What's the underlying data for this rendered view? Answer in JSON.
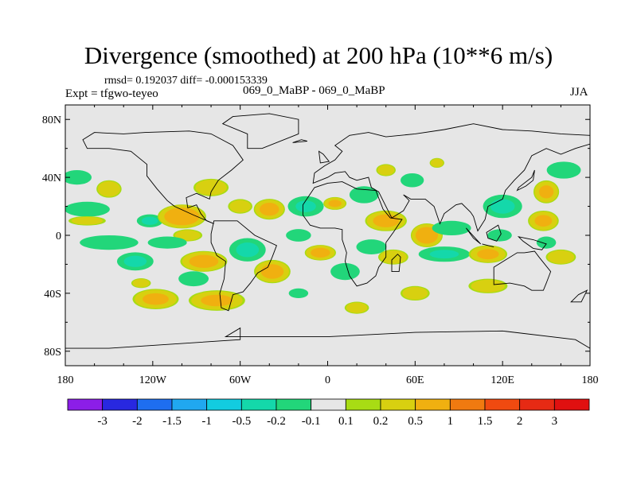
{
  "chart_data": {
    "type": "heatmap",
    "title": "Divergence (smoothed) at 200 hPa (10**6 m/s)",
    "stats_line": "rmsd= 0.192037 diff= -0.000153339",
    "experiment_line": "Expt = tfgwo-teyeo",
    "case_line": "069_0_MaBP - 069_0_MaBP",
    "season": "JJA",
    "x_axis": {
      "range": [
        -180,
        180
      ],
      "ticks": [
        -180,
        -120,
        -60,
        0,
        60,
        120,
        180
      ],
      "tick_labels": [
        "180",
        "120W",
        "60W",
        "0",
        "60E",
        "120E",
        "180"
      ]
    },
    "y_axis": {
      "range": [
        -90,
        90
      ],
      "ticks": [
        80,
        40,
        0,
        -40,
        -80
      ],
      "tick_labels": [
        "80N",
        "40N",
        "0",
        "40S",
        "80S"
      ]
    },
    "colorbar": {
      "labels": [
        "-3",
        "-2",
        "-1.5",
        "-1",
        "-0.5",
        "-0.2",
        "-0.1",
        "0.1",
        "0.2",
        "0.5",
        "1",
        "1.5",
        "2",
        "3"
      ],
      "colors": [
        "#8c1ee8",
        "#2828e0",
        "#1e6ef0",
        "#20a8f0",
        "#12cce0",
        "#14d8aa",
        "#22d67a",
        "#e6e6e6",
        "#a8dc14",
        "#d8d010",
        "#f0b010",
        "#f07a10",
        "#f04a10",
        "#e62a14",
        "#e01010"
      ]
    },
    "features": [
      {
        "lon": -172,
        "lat": 40,
        "rx": 12,
        "ry": 6,
        "v": -0.3
      },
      {
        "lon": -150,
        "lat": 32,
        "rx": 10,
        "ry": 7,
        "v": 0.4
      },
      {
        "lon": -165,
        "lat": 18,
        "rx": 18,
        "ry": 6,
        "v": -0.4
      },
      {
        "lon": -165,
        "lat": 10,
        "rx": 16,
        "ry": 4,
        "v": 0.2
      },
      {
        "lon": -150,
        "lat": -5,
        "rx": 24,
        "ry": 6,
        "v": -0.3
      },
      {
        "lon": -132,
        "lat": -18,
        "rx": 14,
        "ry": 7,
        "v": -0.6
      },
      {
        "lon": -128,
        "lat": -33,
        "rx": 8,
        "ry": 4,
        "v": 0.3
      },
      {
        "lon": -118,
        "lat": -44,
        "rx": 18,
        "ry": 8,
        "v": 0.5
      },
      {
        "lon": -122,
        "lat": 10,
        "rx": 10,
        "ry": 5,
        "v": -0.6
      },
      {
        "lon": -100,
        "lat": 13,
        "rx": 18,
        "ry": 9,
        "v": 0.9
      },
      {
        "lon": -96,
        "lat": 0,
        "rx": 12,
        "ry": 5,
        "v": 0.3
      },
      {
        "lon": -110,
        "lat": -5,
        "rx": 16,
        "ry": 5,
        "v": -0.3
      },
      {
        "lon": -85,
        "lat": -18,
        "rx": 18,
        "ry": 8,
        "v": 0.6
      },
      {
        "lon": -92,
        "lat": -30,
        "rx": 12,
        "ry": 6,
        "v": -0.4
      },
      {
        "lon": -76,
        "lat": -45,
        "rx": 22,
        "ry": 8,
        "v": 0.5
      },
      {
        "lon": -80,
        "lat": 33,
        "rx": 14,
        "ry": 7,
        "v": 0.4
      },
      {
        "lon": -60,
        "lat": 20,
        "rx": 10,
        "ry": 6,
        "v": 0.3
      },
      {
        "lon": -55,
        "lat": -10,
        "rx": 14,
        "ry": 9,
        "v": -0.6
      },
      {
        "lon": -38,
        "lat": -25,
        "rx": 14,
        "ry": 9,
        "v": 0.6
      },
      {
        "lon": -40,
        "lat": 18,
        "rx": 12,
        "ry": 8,
        "v": 0.6
      },
      {
        "lon": -20,
        "lat": 0,
        "rx": 10,
        "ry": 5,
        "v": -0.4
      },
      {
        "lon": -5,
        "lat": -12,
        "rx": 12,
        "ry": 6,
        "v": 0.6
      },
      {
        "lon": -15,
        "lat": 20,
        "rx": 14,
        "ry": 8,
        "v": -0.5
      },
      {
        "lon": 5,
        "lat": 22,
        "rx": 9,
        "ry": 5,
        "v": 0.5
      },
      {
        "lon": 25,
        "lat": 28,
        "rx": 12,
        "ry": 7,
        "v": -0.3
      },
      {
        "lon": 40,
        "lat": 10,
        "rx": 16,
        "ry": 8,
        "v": 0.6
      },
      {
        "lon": 30,
        "lat": -8,
        "rx": 12,
        "ry": 6,
        "v": -0.4
      },
      {
        "lon": 12,
        "lat": -25,
        "rx": 12,
        "ry": 7,
        "v": -0.3
      },
      {
        "lon": 45,
        "lat": -15,
        "rx": 12,
        "ry": 6,
        "v": 0.4
      },
      {
        "lon": 68,
        "lat": 0,
        "rx": 12,
        "ry": 9,
        "v": 0.8
      },
      {
        "lon": 85,
        "lat": 5,
        "rx": 16,
        "ry": 6,
        "v": -0.3
      },
      {
        "lon": 80,
        "lat": -13,
        "rx": 20,
        "ry": 6,
        "v": -0.5
      },
      {
        "lon": 110,
        "lat": -13,
        "rx": 15,
        "ry": 7,
        "v": 0.5
      },
      {
        "lon": 118,
        "lat": 0,
        "rx": 10,
        "ry": 5,
        "v": -0.3
      },
      {
        "lon": 120,
        "lat": 20,
        "rx": 15,
        "ry": 9,
        "v": -0.6
      },
      {
        "lon": 148,
        "lat": 10,
        "rx": 12,
        "ry": 8,
        "v": 0.5
      },
      {
        "lon": 150,
        "lat": 30,
        "rx": 10,
        "ry": 9,
        "v": 0.5
      },
      {
        "lon": 162,
        "lat": 45,
        "rx": 14,
        "ry": 7,
        "v": -0.3
      },
      {
        "lon": 150,
        "lat": -5,
        "rx": 8,
        "ry": 5,
        "v": -0.3
      },
      {
        "lon": 160,
        "lat": -15,
        "rx": 12,
        "ry": 6,
        "v": 0.4
      },
      {
        "lon": 58,
        "lat": 38,
        "rx": 10,
        "ry": 6,
        "v": -0.2
      },
      {
        "lon": 40,
        "lat": 45,
        "rx": 8,
        "ry": 5,
        "v": 0.3
      },
      {
        "lon": 75,
        "lat": 50,
        "rx": 6,
        "ry": 4,
        "v": 0.3
      },
      {
        "lon": -20,
        "lat": -40,
        "rx": 8,
        "ry": 4,
        "v": -0.3
      },
      {
        "lon": 20,
        "lat": -50,
        "rx": 10,
        "ry": 5,
        "v": 0.3
      },
      {
        "lon": 60,
        "lat": -40,
        "rx": 12,
        "ry": 6,
        "v": 0.3
      },
      {
        "lon": 110,
        "lat": -35,
        "rx": 16,
        "ry": 6,
        "v": 0.3
      }
    ]
  }
}
